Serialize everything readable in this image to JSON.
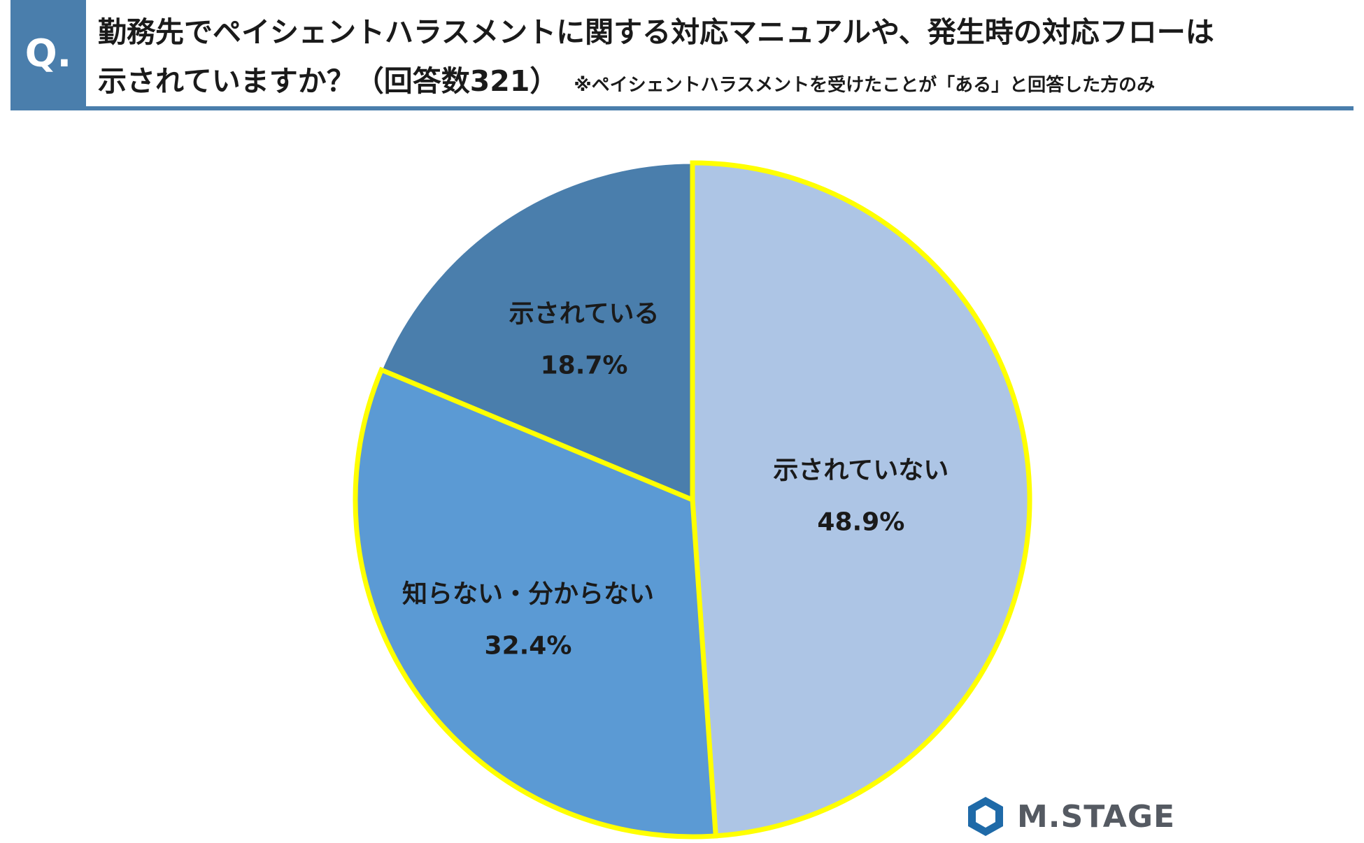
{
  "header": {
    "badge": "Q.",
    "line1": "勤務先でペイシェントハラスメントに関する対応マニュアルや、発生時の対応フローは",
    "line2": "示されていますか？（回答数321）",
    "note": "※ペイシェントハラスメントを受けたことが「ある」と回答した方のみ"
  },
  "chart_data": {
    "type": "pie",
    "start": "12 o'clock, clockwise",
    "slices": [
      {
        "label": "示されていない",
        "value": 48.9,
        "value_label": "48.9%",
        "color": "#adc5e5",
        "highlighted": true
      },
      {
        "label": "知らない・分からない",
        "value": 32.4,
        "value_label": "32.4%",
        "color": "#5b9ad4",
        "highlighted": true
      },
      {
        "label": "示されている",
        "value": 18.7,
        "value_label": "18.7%",
        "color": "#4a7eac",
        "highlighted": false
      }
    ],
    "highlight_color": "#ffff00",
    "label_color": "#1a1a1a"
  },
  "logo": {
    "text": "M.STAGE",
    "mark_color": "#1f6aa8"
  }
}
